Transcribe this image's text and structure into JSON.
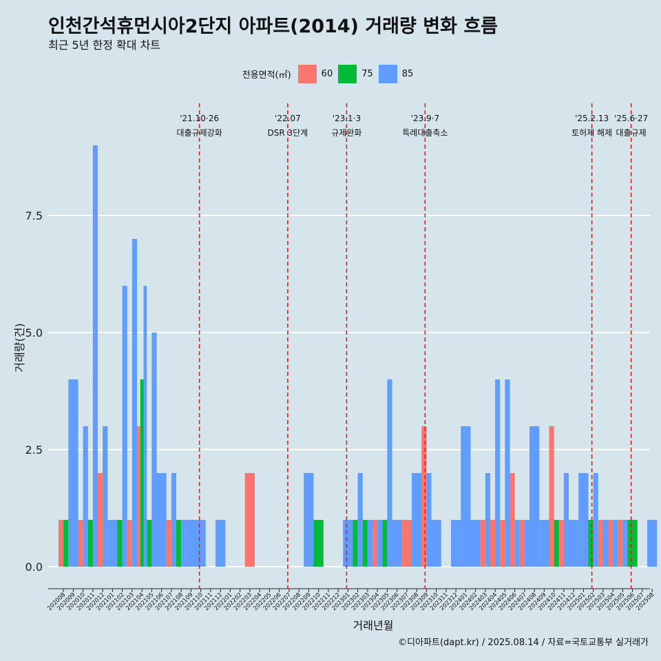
{
  "title": "인천간석휴먼시아2단지 아파트(2014) 거래량 변화 흐름",
  "subtitle": "최근 5년 한정 확대 차트",
  "legend": {
    "title": "전용면적(㎡)"
  },
  "caption": "©디아파트(dapt.kr) / 2025.08.14 / 자료=국토교통부 실거래가",
  "colors": {
    "60": "#f8766d",
    "75": "#00ba38",
    "85": "#619cff",
    "guide": "#e41a1c",
    "background": "#d6e4ec",
    "grid": "#ffffff"
  },
  "chart_data": {
    "type": "bar",
    "title": "인천간석휴먼시아2단지 아파트(2014) 거래량 변화 흐름",
    "subtitle": "최근 5년 한정 확대 차트",
    "xlabel": "거래년월",
    "ylabel": "거래량(건)",
    "ylim": [
      0,
      9
    ],
    "yticks": [
      0.0,
      2.5,
      5.0,
      7.5
    ],
    "ytick_labels": [
      "0.0",
      "2.5",
      "5.0",
      "7.5"
    ],
    "grid": true,
    "legend_position": "top",
    "categories": [
      "202008",
      "202009",
      "202010",
      "202011",
      "202012",
      "202101",
      "202102",
      "202103",
      "202104",
      "202105",
      "202106",
      "202107",
      "202108",
      "202109",
      "202110",
      "202111",
      "202112",
      "202201",
      "202202",
      "202203",
      "202204",
      "202205",
      "202206",
      "202207",
      "202208",
      "202209",
      "202210",
      "202211",
      "202212",
      "202301",
      "202302",
      "202303",
      "202304",
      "202305",
      "202306",
      "202307",
      "202308",
      "202309",
      "202310",
      "202311",
      "202312",
      "202401",
      "202402",
      "202403",
      "202404",
      "202405",
      "202406",
      "202407",
      "202408",
      "202409",
      "202410",
      "202411",
      "202412",
      "202501",
      "202502",
      "202503",
      "202504",
      "202505",
      "202506",
      "202507",
      "202508"
    ],
    "series": [
      {
        "name": "60",
        "values": [
          1,
          0,
          1,
          0,
          2,
          0,
          0,
          1,
          3,
          0,
          0,
          1,
          0,
          0,
          0,
          0,
          0,
          0,
          0,
          2,
          0,
          0,
          0,
          0,
          0,
          0,
          0,
          0,
          0,
          0,
          0,
          0,
          1,
          0,
          0,
          1,
          0,
          3,
          0,
          0,
          0,
          0,
          0,
          1,
          1,
          1,
          2,
          1,
          0,
          0,
          3,
          1,
          0,
          0,
          0,
          1,
          1,
          1,
          0,
          0,
          0
        ]
      },
      {
        "name": "75",
        "values": [
          1,
          0,
          0,
          1,
          0,
          0,
          1,
          0,
          4,
          1,
          0,
          0,
          1,
          0,
          0,
          0,
          0,
          0,
          0,
          0,
          0,
          0,
          0,
          0,
          0,
          0,
          1,
          0,
          0,
          0,
          1,
          1,
          0,
          1,
          0,
          0,
          0,
          0,
          0,
          0,
          0,
          0,
          0,
          0,
          0,
          0,
          0,
          0,
          0,
          0,
          1,
          0,
          0,
          0,
          1,
          0,
          0,
          0,
          1,
          0,
          0
        ]
      },
      {
        "name": "85",
        "values": [
          0,
          4,
          3,
          9,
          3,
          1,
          6,
          7,
          6,
          5,
          2,
          2,
          1,
          1,
          1,
          0,
          1,
          0,
          0,
          0,
          0,
          0,
          0,
          0,
          0,
          2,
          0,
          0,
          0,
          1,
          2,
          1,
          1,
          4,
          1,
          0,
          2,
          2,
          1,
          0,
          1,
          3,
          1,
          2,
          4,
          4,
          1,
          1,
          3,
          1,
          0,
          2,
          1,
          2,
          2,
          1,
          1,
          1,
          0,
          0,
          1
        ]
      }
    ],
    "annotations": [
      {
        "label": "'21.10·26",
        "sub": "대출규제강화",
        "at": "202110"
      },
      {
        "label": "'22.07",
        "sub": "DSR 3단계",
        "at": "202207"
      },
      {
        "label": "'23.1·3",
        "sub": "규제완화",
        "at": "202301"
      },
      {
        "label": "'23.9·7",
        "sub": "특례대출축소",
        "at": "202309"
      },
      {
        "label": "'25.2.13",
        "sub": "토허제 해제",
        "at": "202502"
      },
      {
        "label": "'25.6·27",
        "sub": "대출규제",
        "at": "202506"
      }
    ]
  }
}
